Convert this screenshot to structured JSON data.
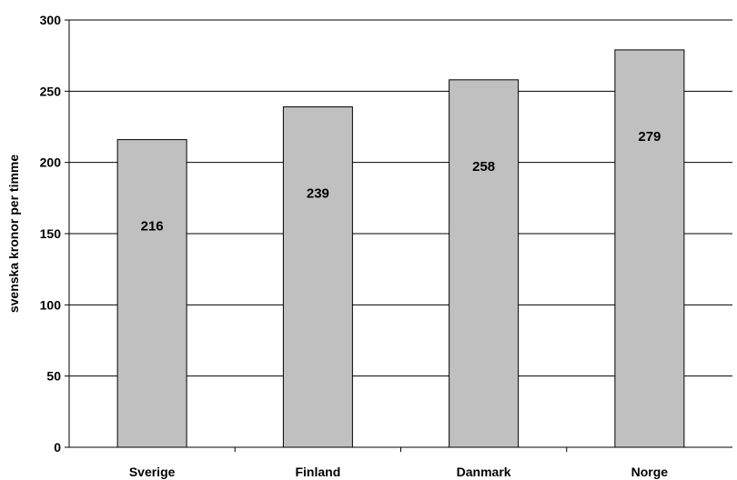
{
  "chart_data": {
    "type": "bar",
    "title": "",
    "xlabel": "",
    "ylabel": "svenska kronor per timme",
    "categories": [
      "Sverige",
      "Finland",
      "Danmark",
      "Norge"
    ],
    "values": [
      216,
      239,
      258,
      279
    ],
    "data_labels": [
      "216",
      "239",
      "258",
      "279"
    ],
    "ylim": [
      0,
      300
    ],
    "yticks": [
      0,
      50,
      100,
      150,
      200,
      250,
      300
    ],
    "ytick_labels": [
      "0",
      "50",
      "100",
      "150",
      "200",
      "250",
      "300"
    ],
    "grid": true,
    "legend": "none",
    "colors": {
      "bar_fill": "#c0c0c0",
      "bar_stroke": "#000000",
      "grid": "#000000",
      "text": "#000000"
    }
  }
}
